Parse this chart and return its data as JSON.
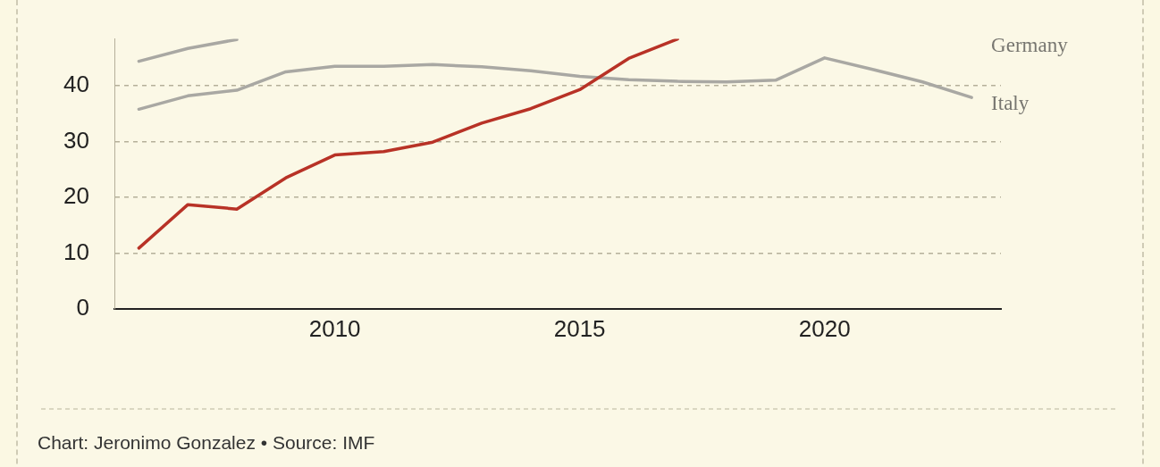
{
  "chart_data": {
    "type": "line",
    "x": [
      2006,
      2007,
      2008,
      2009,
      2010,
      2011,
      2012,
      2013,
      2014,
      2015,
      2016,
      2017,
      2018,
      2019,
      2020,
      2021,
      2022,
      2023
    ],
    "series": [
      {
        "color": "#b83226",
        "values": [
          10.9,
          18.7,
          17.9,
          23.5,
          27.6,
          28.2,
          29.9,
          33.3,
          35.9,
          39.3,
          44.9,
          48.4,
          null,
          null,
          null,
          null,
          null,
          null
        ]
      },
      {
        "name": "Italy",
        "color": "#a9a8a3",
        "values": [
          35.8,
          38.2,
          39.2,
          42.5,
          43.5,
          43.5,
          43.8,
          43.4,
          42.7,
          41.7,
          41.1,
          40.8,
          40.7,
          41.0,
          45.0,
          42.9,
          40.7,
          37.9
        ]
      },
      {
        "name": "Germany",
        "color": "#a9a8a3",
        "values": [
          44.4,
          46.7,
          48.3,
          null,
          null,
          null,
          null,
          null,
          null,
          null,
          null,
          null,
          null,
          null,
          null,
          null,
          null,
          null
        ]
      }
    ],
    "xlim": [
      2005.5,
      2023.6
    ],
    "xticks": [
      2010,
      2015,
      2020
    ],
    "ylim": [
      0,
      48.4
    ],
    "yticks": [
      0,
      10,
      20,
      30,
      40
    ],
    "grid": "y",
    "legend": false,
    "marker": "none",
    "line_style": "solid",
    "annotations": [
      "Chart: Jeronimo Gonzalez • Source: IMF"
    ]
  }
}
